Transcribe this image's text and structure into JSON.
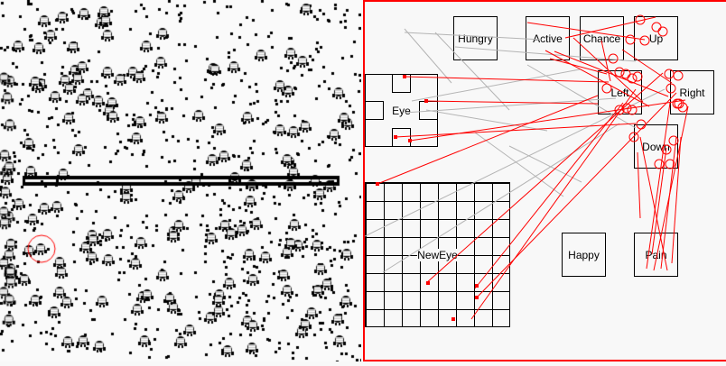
{
  "world": {
    "name": "world-view",
    "wall_color": "#000000",
    "selection_color": "#ff0000"
  },
  "brain": {
    "border_color": "#ff0000",
    "nodes": {
      "hungry": "Hungry",
      "active": "Active",
      "chance": "Chance",
      "up": "Up",
      "left": "Left",
      "right": "Right",
      "eye": "Eye",
      "down": "Down",
      "neweye": "NewEye",
      "happy": "Happy",
      "pain": "Pain"
    },
    "excitatory_color": "#ff0000",
    "inhibitory_color": "#b4b4b4"
  }
}
